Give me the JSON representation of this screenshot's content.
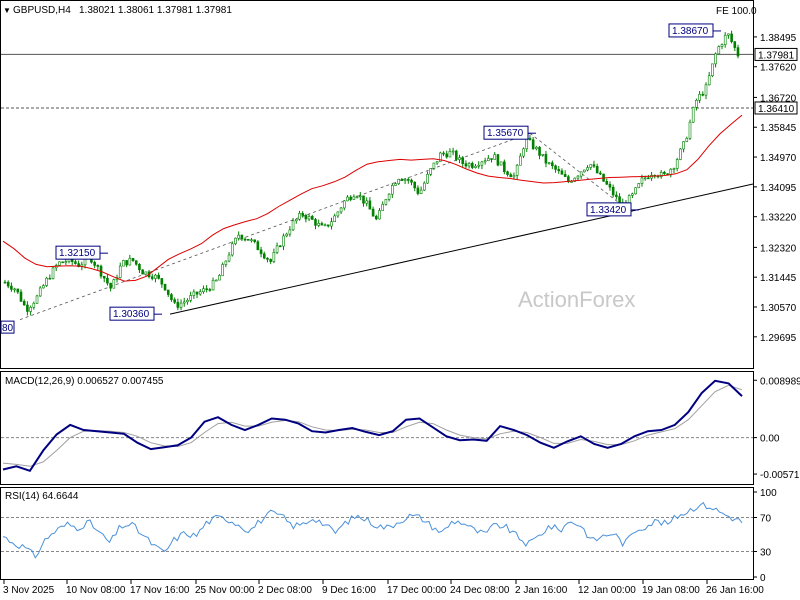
{
  "header": {
    "symbol": "GBPUSD,H4",
    "ohlc": "1.38021 1.38061 1.37981 1.37981",
    "fe": "FE 100.0"
  },
  "watermark": "ActionForex",
  "colors": {
    "candle": "#008000",
    "ma": "#dd0000",
    "trendline": "#000000",
    "macd": "#000080",
    "signal": "#a0a0a0",
    "rsi": "#4a90d9",
    "label": "#000080"
  },
  "chart_data": [
    {
      "panel": "price",
      "type": "line",
      "title": "GBPUSD,H4",
      "ylim": [
        1.2925,
        1.3905
      ],
      "y_ticks": [
        "1.38495",
        "1.37620",
        "1.36720",
        "1.35845",
        "1.34970",
        "1.34095",
        "1.33220",
        "1.32320",
        "1.31445",
        "1.30570",
        "1.29695"
      ],
      "x_ticks": [
        "3 Nov 2025",
        "10 Nov 08:00",
        "17 Nov 16:00",
        "25 Nov 00:00",
        "2 Dec 08:00",
        "9 Dec 16:00",
        "17 Dec 00:00",
        "24 Dec 08:00",
        "2 Jan 16:00",
        "12 Jan 00:00",
        "19 Jan 08:00",
        "26 Jan 16:00"
      ],
      "series": [
        {
          "name": "price",
          "values": [
            1.313,
            1.311,
            1.305,
            1.3085,
            1.314,
            1.3185,
            1.3195,
            1.318,
            1.3205,
            1.316,
            1.311,
            1.3185,
            1.3195,
            1.316,
            1.315,
            1.312,
            1.306,
            1.3075,
            1.3095,
            1.311,
            1.3135,
            1.321,
            1.327,
            1.3255,
            1.3225,
            1.319,
            1.325,
            1.33,
            1.333,
            1.331,
            1.3285,
            1.332,
            1.337,
            1.3395,
            1.336,
            1.331,
            1.339,
            1.344,
            1.343,
            1.339,
            1.3455,
            1.3505,
            1.351,
            1.348,
            1.3475,
            1.349,
            1.35,
            1.346,
            1.344,
            1.355,
            1.352,
            1.348,
            1.3455,
            1.3425,
            1.345,
            1.348,
            1.344,
            1.34,
            1.3355,
            1.338,
            1.343,
            1.3455,
            1.344,
            1.3475,
            1.354,
            1.366,
            1.37,
            1.381,
            1.386,
            1.3798
          ]
        }
      ],
      "ma_values": [
        1.325,
        1.3228,
        1.32,
        1.3182,
        1.3175,
        1.3177,
        1.3178,
        1.3177,
        1.317,
        1.316,
        1.3146,
        1.3133,
        1.3135,
        1.3147,
        1.3172,
        1.3197,
        1.3213,
        1.3227,
        1.3243,
        1.3268,
        1.3287,
        1.3298,
        1.3308,
        1.3316,
        1.3331,
        1.3352,
        1.337,
        1.3388,
        1.3404,
        1.3413,
        1.3424,
        1.3438,
        1.3458,
        1.3476,
        1.3483,
        1.3487,
        1.349,
        1.3488,
        1.349,
        1.3492,
        1.3487,
        1.3476,
        1.3462,
        1.345,
        1.3441,
        1.3437,
        1.3434,
        1.3429,
        1.3425,
        1.3421,
        1.3422,
        1.3425,
        1.3428,
        1.3431,
        1.3434,
        1.3437,
        1.3438,
        1.3439,
        1.344,
        1.3441,
        1.3443,
        1.3448,
        1.346,
        1.349,
        1.353,
        1.3565,
        1.3593,
        1.362
      ],
      "levels": [
        {
          "value": 1.3641,
          "label": "1.36410",
          "style": "dashed"
        },
        {
          "value": 1.37981,
          "label": "1.37981",
          "style": "solid"
        }
      ],
      "annotations": [
        {
          "label": "1.32150",
          "value": 1.3215
        },
        {
          "label": "1.30360",
          "value": 1.3036
        },
        {
          "label": "1.35670",
          "value": 1.3567
        },
        {
          "label": "1.33420",
          "value": 1.3342
        },
        {
          "label": "1.38670",
          "value": 1.3867
        }
      ],
      "edge_label": "80"
    },
    {
      "panel": "macd",
      "type": "line",
      "title": "MACD(12,26,9) 0.006527 0.007455",
      "ylim": [
        -0.0068,
        0.0095
      ],
      "y_ticks": [
        "0.008989",
        "0.00",
        "-0.005715"
      ],
      "series": [
        {
          "name": "MACD(12,26,9)",
          "values": [
            -0.005,
            -0.0045,
            -0.0052,
            -0.002,
            0.0005,
            0.002,
            0.0012,
            0.001,
            0.0008,
            0.0006,
            -0.0008,
            -0.0018,
            -0.0015,
            -0.0012,
            0.0,
            0.0025,
            0.0032,
            0.002,
            0.0012,
            0.002,
            0.003,
            0.0028,
            0.0022,
            0.001,
            0.0008,
            0.0012,
            0.0015,
            0.0009,
            0.0004,
            0.001,
            0.0028,
            0.003,
            0.0016,
            0.0002,
            -0.0004,
            -0.0003,
            -0.0005,
            0.0018,
            0.0012,
            0.0004,
            -0.0008,
            -0.0016,
            -0.0006,
            0.0002,
            -0.001,
            -0.0016,
            -0.001,
            0.0002,
            0.001,
            0.0012,
            0.002,
            0.004,
            0.007,
            0.0089,
            0.0085,
            0.0065
          ]
        },
        {
          "name": "signal",
          "values": [
            -0.004,
            -0.0042,
            -0.0045,
            -0.0038,
            -0.002,
            0.0,
            0.001,
            0.0011,
            0.001,
            0.0008,
            0.0002,
            -0.0008,
            -0.0013,
            -0.0014,
            -0.0008,
            0.0008,
            0.0022,
            0.0024,
            0.0018,
            0.0018,
            0.0024,
            0.0027,
            0.0025,
            0.0017,
            0.0012,
            0.0011,
            0.0013,
            0.0012,
            0.0008,
            0.0008,
            0.0017,
            0.0024,
            0.0022,
            0.0012,
            0.0004,
            0.0,
            -0.0002,
            0.0006,
            0.001,
            0.0008,
            0.0,
            -0.0009,
            -0.0009,
            -0.0003,
            -0.0006,
            -0.0011,
            -0.0011,
            -0.0005,
            0.0004,
            0.0009,
            0.0014,
            0.0028,
            0.005,
            0.0072,
            0.0082,
            0.0075
          ]
        }
      ]
    },
    {
      "panel": "rsi",
      "type": "line",
      "title": "RSI(14) 64.6644",
      "ylim": [
        0,
        100
      ],
      "y_ticks": [
        "100",
        "70",
        "30",
        "0"
      ],
      "series": [
        {
          "name": "RSI(14)",
          "values": [
            48,
            40,
            35,
            24,
            45,
            55,
            62,
            58,
            65,
            52,
            40,
            60,
            62,
            50,
            38,
            28,
            44,
            52,
            48,
            64,
            70,
            68,
            62,
            54,
            66,
            75,
            72,
            60,
            62,
            70,
            62,
            52,
            64,
            72,
            67,
            60,
            58,
            66,
            72,
            70,
            60,
            52,
            66,
            64,
            55,
            50,
            62,
            58,
            48,
            38,
            48,
            60,
            55,
            66,
            60,
            42,
            48,
            52,
            38,
            55,
            60,
            66,
            62,
            72,
            78,
            85,
            83,
            76,
            70,
            65
          ]
        }
      ],
      "levels": [
        70,
        30
      ]
    }
  ]
}
